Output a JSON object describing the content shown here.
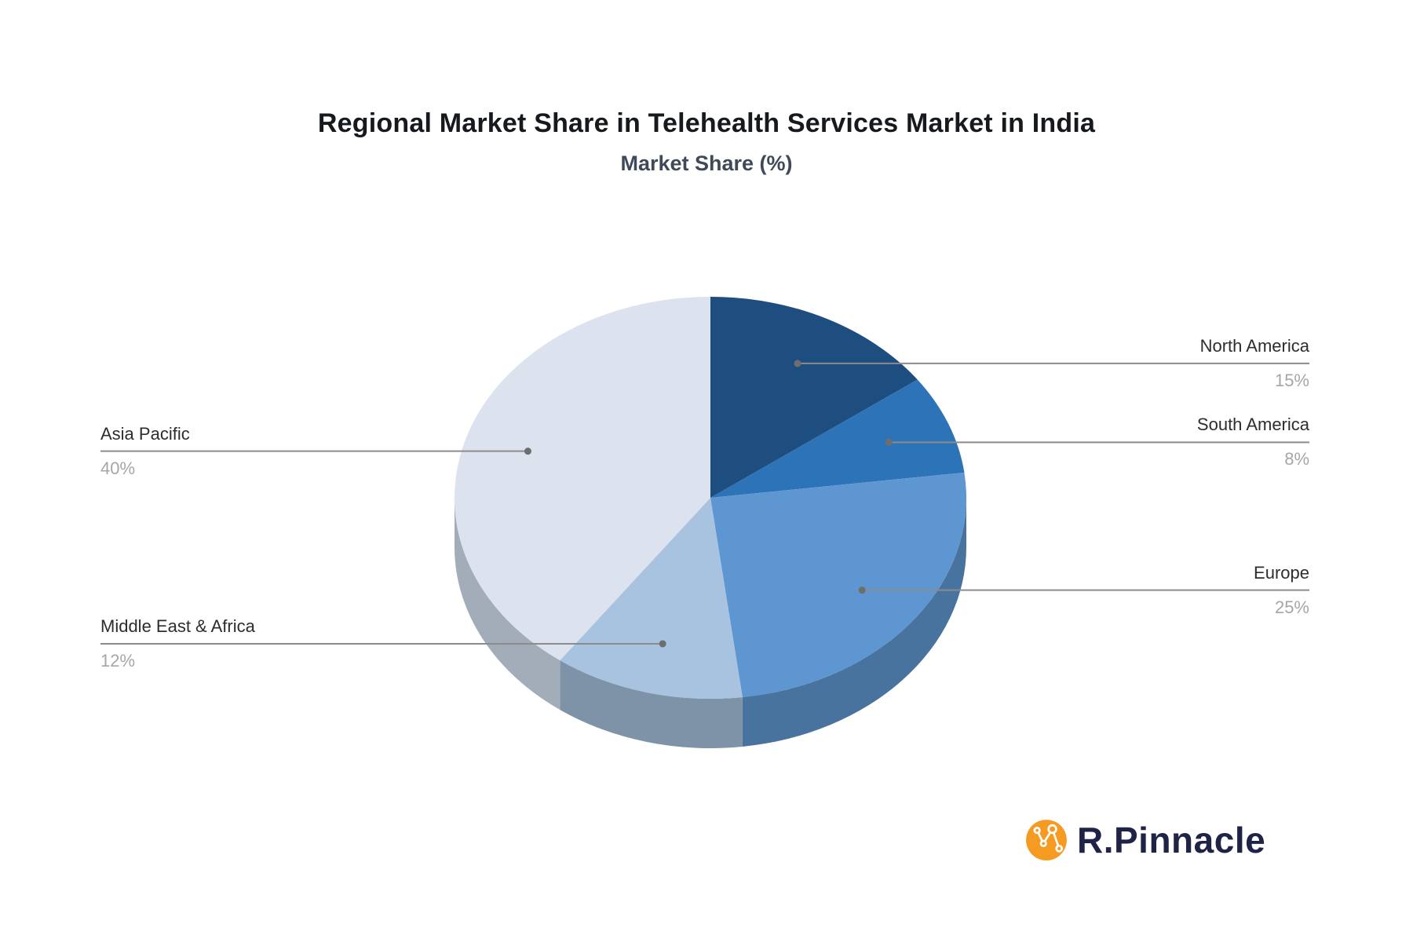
{
  "page": {
    "background": "#ffffff"
  },
  "header": {
    "title": "Regional Market Share in Telehealth Services Market in India",
    "subtitle": "Market Share (%)"
  },
  "chart_data": {
    "type": "pie",
    "title": "Regional Market Share in Telehealth Services Market in India",
    "subtitle": "Market Share (%)",
    "unit": "%",
    "start_angle": "12 o'clock, clockwise",
    "style_3d": "depth-extruded ellipse pie",
    "slices": [
      {
        "label": "North America",
        "value": 15,
        "value_text": "15%",
        "color": "#1e4e80",
        "depth_color": null,
        "callout_side": "right"
      },
      {
        "label": "South America",
        "value": 8,
        "value_text": "8%",
        "color": "#2c73b7",
        "depth_color": null,
        "callout_side": "right"
      },
      {
        "label": "Europe",
        "value": 25,
        "value_text": "25%",
        "color": "#5e96d1",
        "depth_color": "#48739e",
        "callout_side": "right"
      },
      {
        "label": "Middle East & Africa",
        "value": 12,
        "value_text": "12%",
        "color": "#a7c3e0",
        "depth_color": "#7e93a7",
        "callout_side": "left"
      },
      {
        "label": "Asia Pacific",
        "value": 40,
        "value_text": "40%",
        "color": "#dce3ee",
        "depth_color": "#a3adb9",
        "callout_side": "left"
      }
    ],
    "style": {
      "label_color": "#2d2d2d",
      "value_color": "#a6a6a6",
      "line_color": "#8c8c8c",
      "dot_color": "#6e6e6e"
    }
  },
  "logo": {
    "text": "R.Pinnacle",
    "icon": "network-nodes-icon",
    "icon_color": "#f59b22",
    "text_color": "#1f2345"
  }
}
